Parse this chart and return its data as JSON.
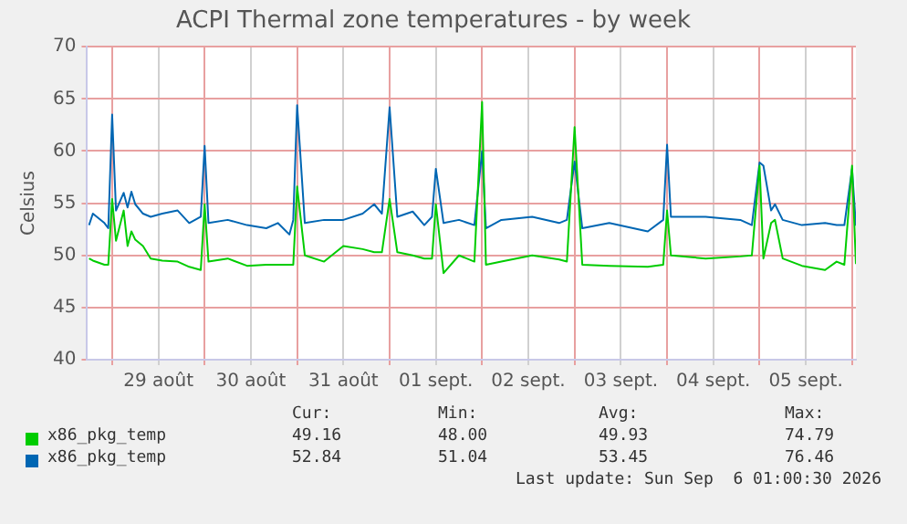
{
  "chart_data": {
    "type": "line",
    "title": "ACPI Thermal zone temperatures - by week",
    "ylabel": "Celsius",
    "x": [
      "2026-08-28T18:00",
      "2026-08-28T19:00",
      "2026-08-28T22:00",
      "2026-08-28T23:00",
      "2026-08-29T00:00",
      "2026-08-29T01:00",
      "2026-08-29T03:00",
      "2026-08-29T04:00",
      "2026-08-29T05:00",
      "2026-08-29T06:00",
      "2026-08-29T08:00",
      "2026-08-29T10:00",
      "2026-08-29T13:00",
      "2026-08-29T17:00",
      "2026-08-29T20:00",
      "2026-08-29T23:00",
      "2026-08-30T00:00",
      "2026-08-30T01:00",
      "2026-08-30T06:00",
      "2026-08-30T11:00",
      "2026-08-30T16:00",
      "2026-08-30T19:00",
      "2026-08-30T22:00",
      "2026-08-30T23:00",
      "2026-08-31T00:00",
      "2026-08-31T02:00",
      "2026-08-31T07:00",
      "2026-08-31T12:00",
      "2026-08-31T17:00",
      "2026-08-31T20:00",
      "2026-08-31T22:00",
      "2026-09-01T00:00",
      "2026-09-01T02:00",
      "2026-09-01T06:00",
      "2026-09-01T09:00",
      "2026-09-01T11:00",
      "2026-09-01T12:00",
      "2026-09-01T14:00",
      "2026-09-01T18:00",
      "2026-09-01T22:00",
      "2026-09-02T00:00",
      "2026-09-02T01:00",
      "2026-09-02T05:00",
      "2026-09-02T13:00",
      "2026-09-02T20:00",
      "2026-09-02T22:00",
      "2026-09-03T00:00",
      "2026-09-03T02:00",
      "2026-09-03T09:00",
      "2026-09-03T19:00",
      "2026-09-03T23:00",
      "2026-09-04T00:00",
      "2026-09-04T01:00",
      "2026-09-04T10:00",
      "2026-09-04T19:00",
      "2026-09-04T22:00",
      "2026-09-05T00:00",
      "2026-09-05T01:00",
      "2026-09-05T03:00",
      "2026-09-05T04:00",
      "2026-09-05T06:00",
      "2026-09-05T11:00",
      "2026-09-05T17:00",
      "2026-09-05T20:00",
      "2026-09-05T22:00",
      "2026-09-06T00:00",
      "2026-09-06T01:00"
    ],
    "series": [
      {
        "name": "x86_pkg_temp",
        "color": "#00cc00",
        "values": [
          49.7,
          49.5,
          49.1,
          49.1,
          55.4,
          51.4,
          54.3,
          50.9,
          52.3,
          51.5,
          50.9,
          49.7,
          49.5,
          49.4,
          48.9,
          48.6,
          54.9,
          49.4,
          49.7,
          49,
          49.1,
          49.1,
          49.1,
          49.1,
          56.6,
          50,
          49.4,
          50.9,
          50.6,
          50.3,
          50.3,
          55.4,
          50.3,
          50,
          49.7,
          49.7,
          54.9,
          48.3,
          50,
          49.4,
          64.7,
          49.1,
          49.4,
          50,
          49.6,
          49.4,
          62.3,
          49.1,
          49,
          48.9,
          49.1,
          54.3,
          50,
          49.7,
          49.9,
          50,
          58.6,
          49.7,
          53.1,
          53.4,
          49.7,
          49,
          48.6,
          49.4,
          49.1,
          58.6,
          49.16
        ]
      },
      {
        "name": "x86_pkg_temp",
        "color": "#0066b3",
        "values": [
          52.9,
          54,
          53.1,
          52.6,
          63.5,
          54.3,
          56,
          54.6,
          56.1,
          54.9,
          54,
          53.7,
          54,
          54.3,
          53.1,
          53.7,
          60.5,
          53.1,
          53.4,
          52.9,
          52.6,
          53.1,
          52,
          53.4,
          64.4,
          53.1,
          53.4,
          53.4,
          54,
          54.9,
          54,
          64.2,
          53.7,
          54.2,
          52.9,
          53.7,
          58.3,
          53.1,
          53.4,
          52.9,
          60,
          52.6,
          53.4,
          53.7,
          53.1,
          53.4,
          59,
          52.6,
          53.1,
          52.3,
          53.4,
          60.6,
          53.7,
          53.7,
          53.4,
          52.9,
          58.9,
          58.6,
          54.3,
          54.9,
          53.4,
          52.9,
          53.1,
          52.9,
          52.9,
          58.3,
          52.84
        ]
      }
    ],
    "xlim": [
      "2026-08-28T17:30",
      "2026-09-06T01:00"
    ],
    "xticks": [
      {
        "value": "2026-08-29T00:00",
        "label": null
      },
      {
        "value": "2026-08-29T12:00",
        "label": "29 août"
      },
      {
        "value": "2026-08-30T00:00",
        "label": null
      },
      {
        "value": "2026-08-30T12:00",
        "label": "30 août"
      },
      {
        "value": "2026-08-31T00:00",
        "label": null
      },
      {
        "value": "2026-08-31T12:00",
        "label": "31 août"
      },
      {
        "value": "2026-09-01T00:00",
        "label": null
      },
      {
        "value": "2026-09-01T12:00",
        "label": "01 sept."
      },
      {
        "value": "2026-09-02T00:00",
        "label": null
      },
      {
        "value": "2026-09-02T12:00",
        "label": "02 sept."
      },
      {
        "value": "2026-09-03T00:00",
        "label": null
      },
      {
        "value": "2026-09-03T12:00",
        "label": "03 sept."
      },
      {
        "value": "2026-09-04T00:00",
        "label": null
      },
      {
        "value": "2026-09-04T12:00",
        "label": "04 sept."
      },
      {
        "value": "2026-09-05T00:00",
        "label": null
      },
      {
        "value": "2026-09-05T12:00",
        "label": "05 sept."
      },
      {
        "value": "2026-09-06T00:00",
        "label": null
      }
    ],
    "ylim": [
      40,
      70
    ],
    "yticks": [
      40,
      45,
      50,
      55,
      60,
      65,
      70
    ],
    "grid": true,
    "legend": "bottom",
    "marker": "none",
    "line_style": "solid",
    "annotations": [
      "Cur:",
      "Min:",
      "Avg:",
      "Max:",
      "49.16",
      "48.00",
      "49.93",
      "74.79",
      "52.84",
      "51.04",
      "53.45",
      "76.46",
      "Last update: Sun Sep  6 01:00:30 2026"
    ]
  }
}
